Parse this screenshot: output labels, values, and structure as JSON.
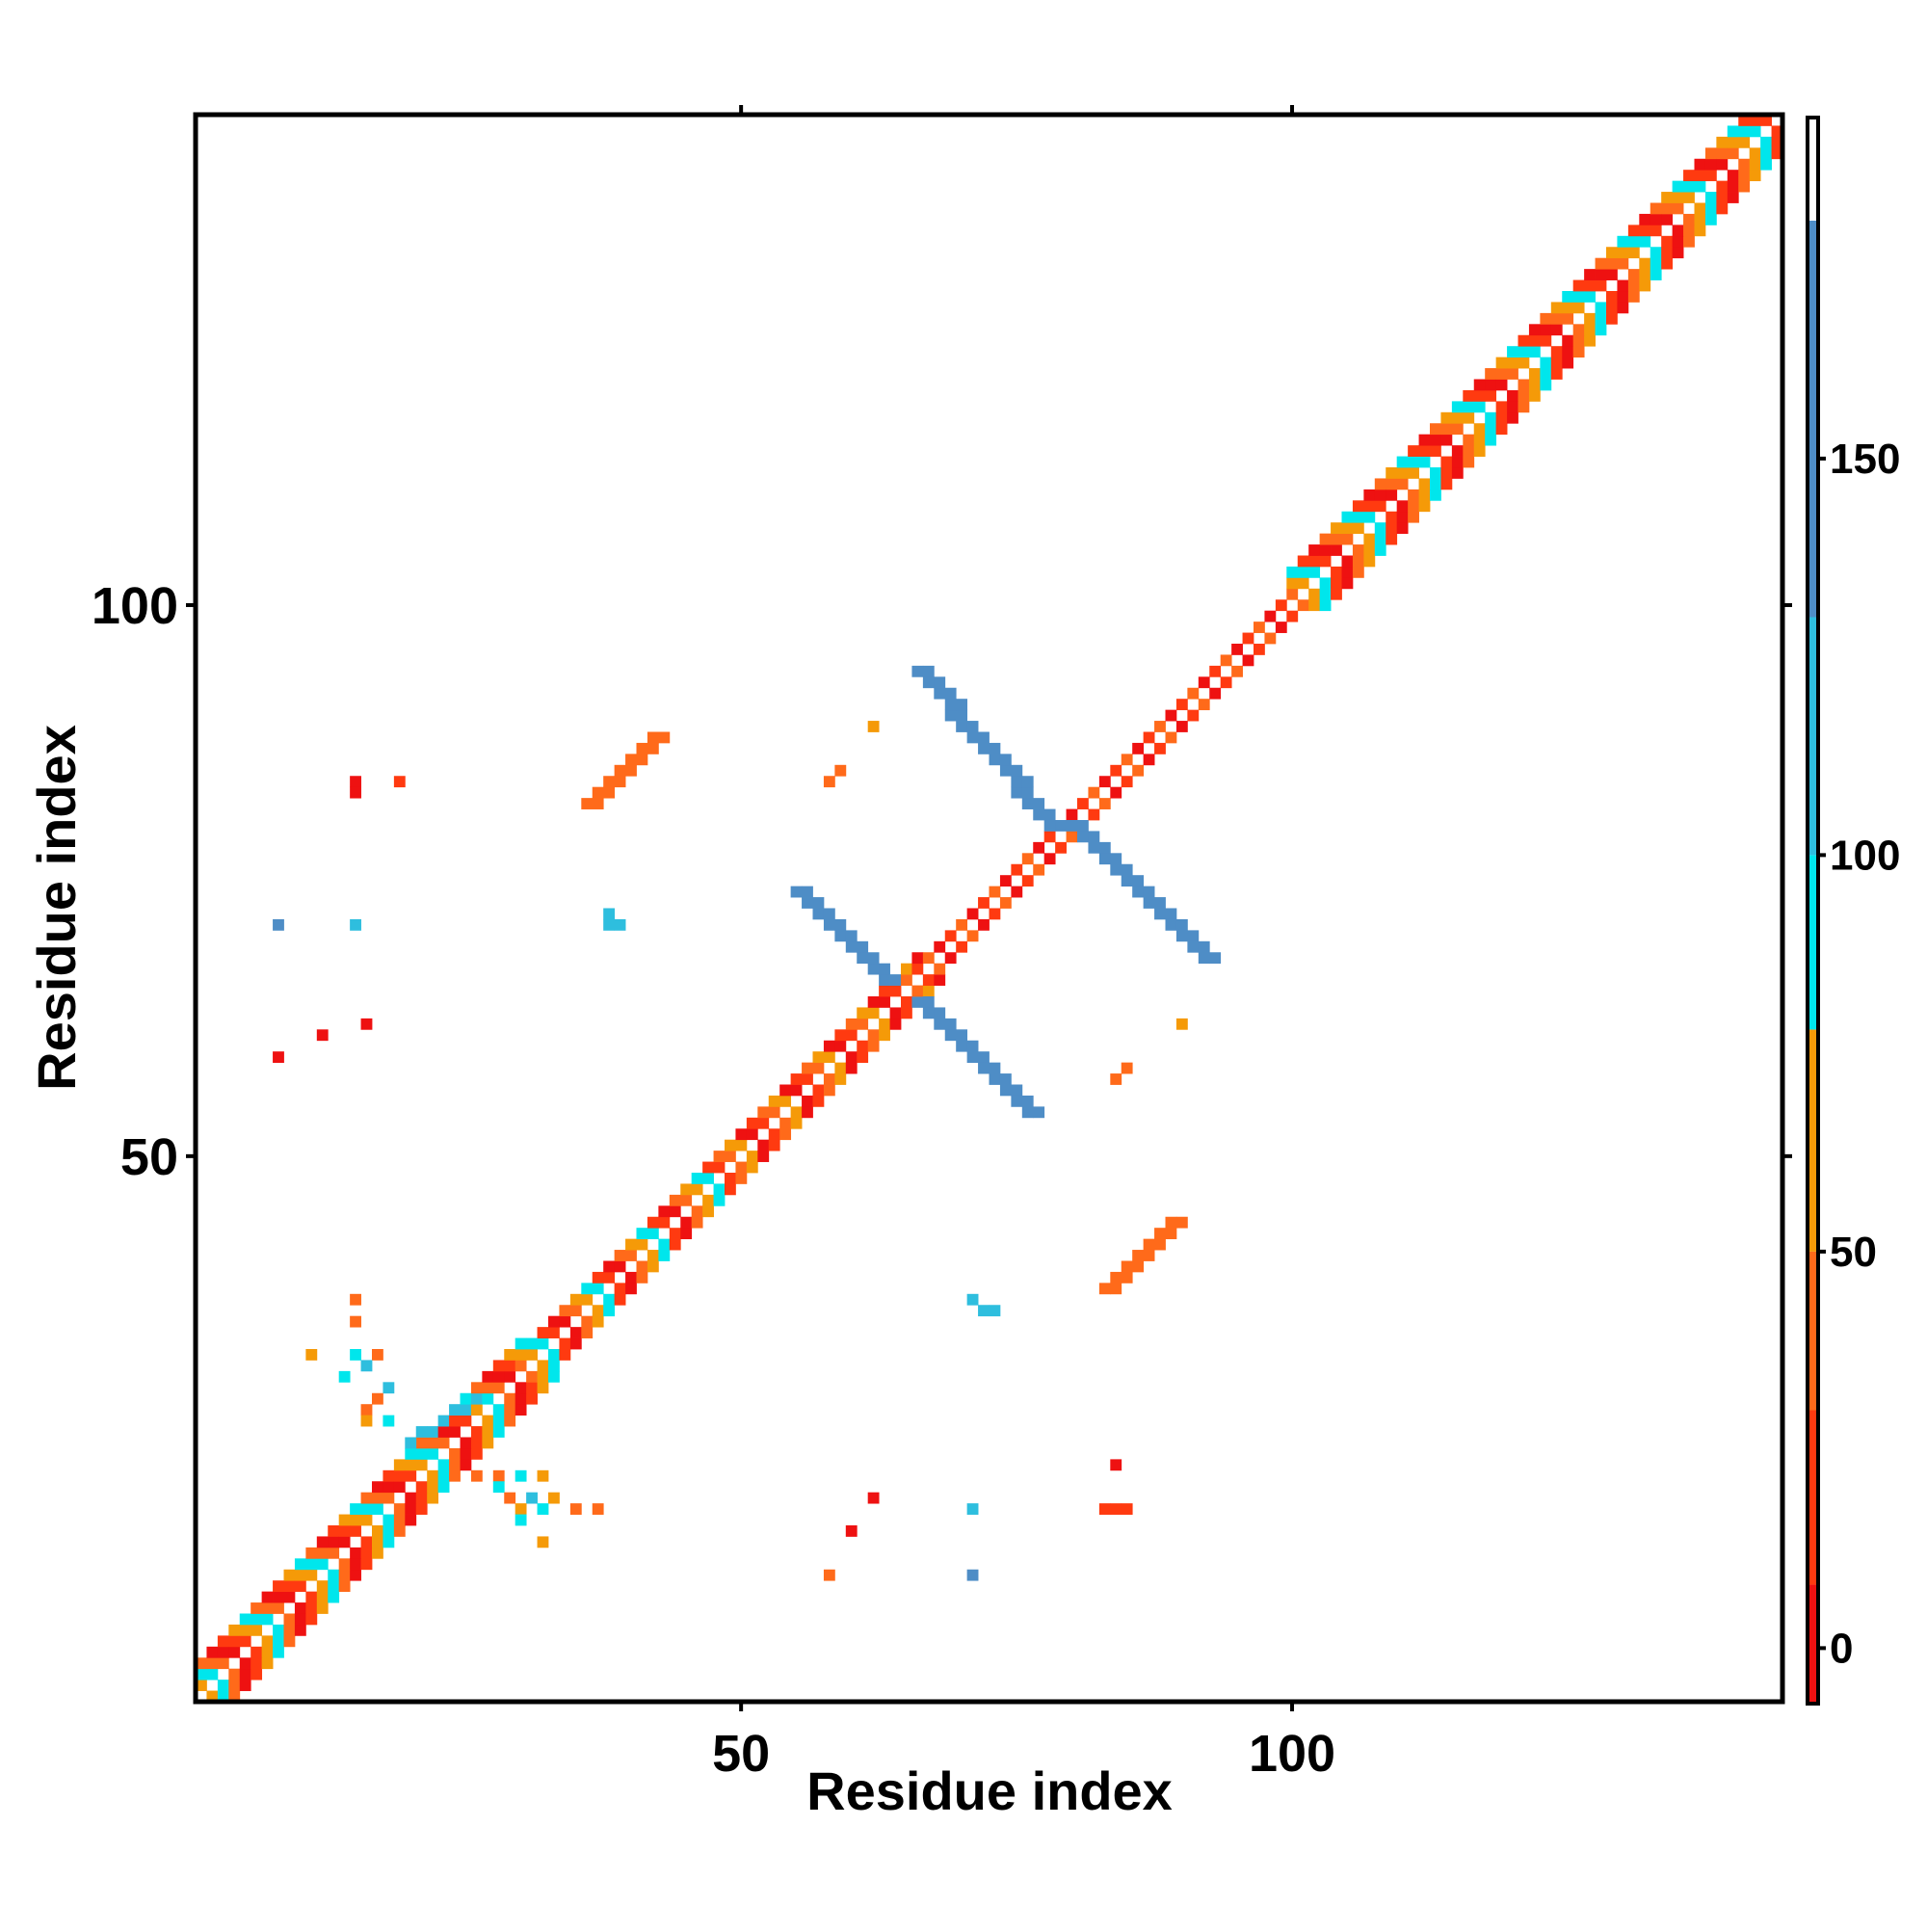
{
  "chart_data": {
    "type": "heatmap",
    "title": "",
    "xlabel": "Residue index",
    "ylabel": "Residue index",
    "xlim": [
      0.5,
      144.5
    ],
    "ylim": [
      0.5,
      144.5
    ],
    "xticks": [
      50,
      100
    ],
    "yticks": [
      50,
      100
    ],
    "grid": false,
    "colorbar": {
      "placement": "right",
      "ticks": [
        0,
        50,
        100,
        150
      ],
      "range": [
        -7,
        193
      ],
      "stops": [
        {
          "from": -7,
          "to": 8,
          "color": "#ee1111"
        },
        {
          "from": 8,
          "to": 30,
          "color": "#ff3a10"
        },
        {
          "from": 30,
          "to": 50,
          "color": "#ff6a1a"
        },
        {
          "from": 50,
          "to": 78,
          "color": "#f59a08"
        },
        {
          "from": 78,
          "to": 100,
          "color": "#00e6ec"
        },
        {
          "from": 100,
          "to": 130,
          "color": "#2ebede"
        },
        {
          "from": 130,
          "to": 180,
          "color": "#4e8dc6"
        },
        {
          "from": 180,
          "to": 193,
          "color": "#ffffff"
        }
      ]
    },
    "diagonal_band": [
      {
        "from": 1,
        "to": 30,
        "half_width": 3,
        "values": [
          5,
          25,
          60,
          90,
          40
        ]
      },
      {
        "from": 30,
        "to": 48,
        "half_width": 2,
        "values": [
          5,
          40,
          60,
          90,
          25
        ]
      },
      {
        "from": 48,
        "to": 66,
        "half_width": 2,
        "values": [
          5,
          20,
          35,
          60
        ]
      },
      {
        "from": 66,
        "to": 100,
        "half_width": 1,
        "values": [
          5,
          25,
          45
        ]
      },
      {
        "from": 100,
        "to": 144,
        "half_width": 3,
        "values": [
          5,
          30,
          60,
          90,
          25
        ]
      }
    ],
    "regions": [
      {
        "name": "cross-arm-upper-right",
        "x": [
          80,
          92
        ],
        "y": [
          80,
          68
        ],
        "width": 2,
        "value": 150
      },
      {
        "name": "cross-arm-upper-left",
        "x": [
          78,
          66
        ],
        "y": [
          80,
          94
        ],
        "width": 2,
        "value": 150
      },
      {
        "name": "cross-arm-lower-right",
        "x": [
          66,
          76
        ],
        "y": [
          64,
          54
        ],
        "width": 2,
        "value": 150
      },
      {
        "name": "cross-arm-lower-left",
        "x": [
          63,
          55
        ],
        "y": [
          66,
          74
        ],
        "width": 2,
        "value": 150
      },
      {
        "name": "antidiag-upper-left",
        "x": [
          36,
          42
        ],
        "y": [
          82,
          88
        ],
        "width": 2,
        "value": 45
      },
      {
        "name": "antidiag-lower-right",
        "x": [
          83,
          89
        ],
        "y": [
          38,
          44
        ],
        "width": 2,
        "value": 45
      },
      {
        "name": "cluster-near-25",
        "x": [
          20,
          26
        ],
        "y": [
          24,
          28
        ],
        "width": 1,
        "value": 120
      }
    ],
    "points": [
      {
        "x": 15,
        "y": 84,
        "v": 5
      },
      {
        "x": 15,
        "y": 83,
        "v": 5
      },
      {
        "x": 19,
        "y": 84,
        "v": 8
      },
      {
        "x": 8,
        "y": 71,
        "v": 140
      },
      {
        "x": 15,
        "y": 71,
        "v": 120
      },
      {
        "x": 38,
        "y": 71,
        "v": 110
      },
      {
        "x": 39,
        "y": 71,
        "v": 110
      },
      {
        "x": 38,
        "y": 72,
        "v": 110
      },
      {
        "x": 16,
        "y": 62,
        "v": 5
      },
      {
        "x": 12,
        "y": 61,
        "v": 5
      },
      {
        "x": 8,
        "y": 59,
        "v": 5
      },
      {
        "x": 62,
        "y": 89,
        "v": 60
      },
      {
        "x": 59,
        "y": 85,
        "v": 45
      },
      {
        "x": 58,
        "y": 84,
        "v": 45
      },
      {
        "x": 90,
        "y": 62,
        "v": 60
      },
      {
        "x": 85,
        "y": 58,
        "v": 45
      },
      {
        "x": 84,
        "y": 57,
        "v": 45
      },
      {
        "x": 71,
        "y": 37,
        "v": 110
      },
      {
        "x": 72,
        "y": 36,
        "v": 110
      },
      {
        "x": 73,
        "y": 36,
        "v": 110
      },
      {
        "x": 15,
        "y": 37,
        "v": 40
      },
      {
        "x": 15,
        "y": 35,
        "v": 30
      },
      {
        "x": 11,
        "y": 32,
        "v": 60
      },
      {
        "x": 15,
        "y": 32,
        "v": 90
      },
      {
        "x": 17,
        "y": 32,
        "v": 45
      },
      {
        "x": 16,
        "y": 31,
        "v": 120
      },
      {
        "x": 14,
        "y": 30,
        "v": 90
      },
      {
        "x": 18,
        "y": 29,
        "v": 110
      },
      {
        "x": 17,
        "y": 28,
        "v": 45
      },
      {
        "x": 16,
        "y": 27,
        "v": 40
      },
      {
        "x": 16,
        "y": 26,
        "v": 60
      },
      {
        "x": 18,
        "y": 26,
        "v": 90
      },
      {
        "x": 26,
        "y": 21,
        "v": 40
      },
      {
        "x": 28,
        "y": 21,
        "v": 45
      },
      {
        "x": 30,
        "y": 21,
        "v": 90
      },
      {
        "x": 32,
        "y": 21,
        "v": 60
      },
      {
        "x": 28,
        "y": 20,
        "v": 90
      },
      {
        "x": 29,
        "y": 19,
        "v": 45
      },
      {
        "x": 31,
        "y": 19,
        "v": 120
      },
      {
        "x": 33,
        "y": 19,
        "v": 60
      },
      {
        "x": 30,
        "y": 18,
        "v": 60
      },
      {
        "x": 32,
        "y": 18,
        "v": 90
      },
      {
        "x": 35,
        "y": 18,
        "v": 45
      },
      {
        "x": 37,
        "y": 18,
        "v": 40
      },
      {
        "x": 30,
        "y": 17,
        "v": 90
      },
      {
        "x": 32,
        "y": 15,
        "v": 60
      },
      {
        "x": 62,
        "y": 19,
        "v": 5
      },
      {
        "x": 60,
        "y": 16,
        "v": 5
      },
      {
        "x": 58,
        "y": 12,
        "v": 30
      },
      {
        "x": 71,
        "y": 18,
        "v": 120
      },
      {
        "x": 71,
        "y": 12,
        "v": 140
      },
      {
        "x": 84,
        "y": 22,
        "v": 5
      },
      {
        "x": 83,
        "y": 18,
        "v": 10
      },
      {
        "x": 84,
        "y": 18,
        "v": 10
      },
      {
        "x": 85,
        "y": 18,
        "v": 10
      }
    ]
  }
}
